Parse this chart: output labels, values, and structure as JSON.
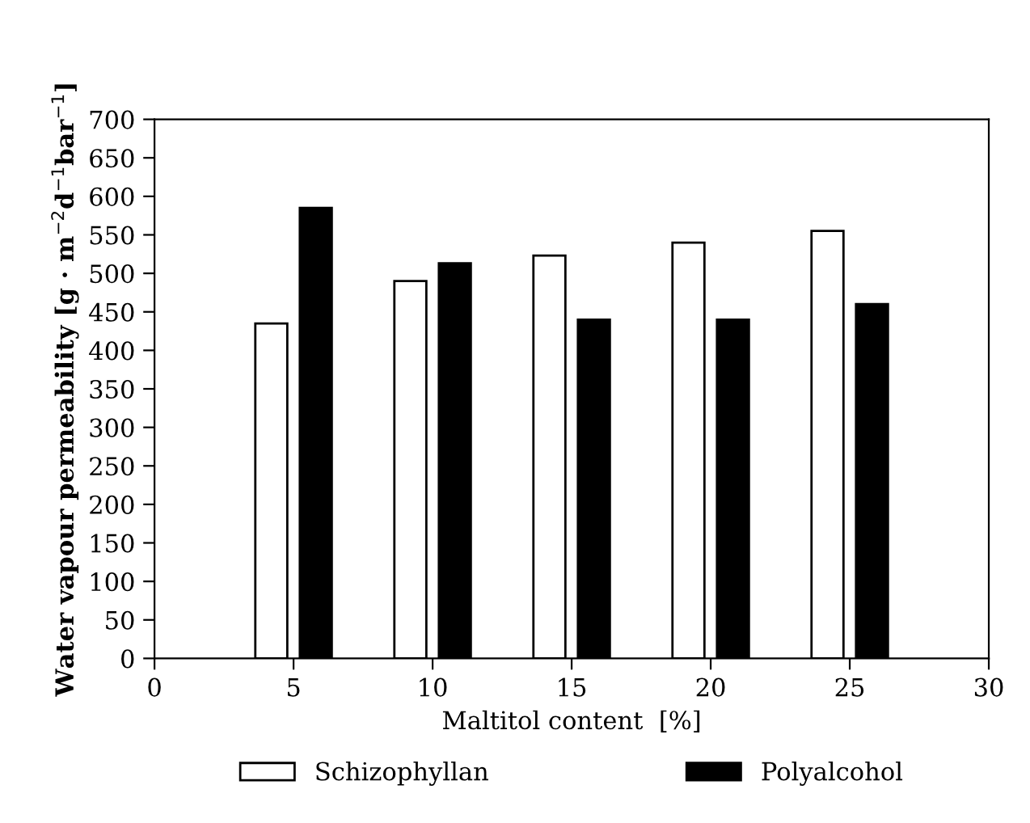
{
  "chart_data": {
    "type": "bar",
    "xlabel": "Maltitol content  [%]",
    "ylabel": "Water vapour permeability [g · m$^{−2}$d$^{−1}$bar$^{−1}$]",
    "x": [
      5,
      10,
      15,
      20,
      25
    ],
    "series": [
      {
        "name": "Schizophyllan",
        "color": "#ffffff",
        "values": [
          435,
          490,
          523,
          540,
          555
        ]
      },
      {
        "name": "Polyalcohol",
        "color": "#000000",
        "values": [
          585,
          513,
          440,
          440,
          460
        ]
      }
    ],
    "xlim": [
      0,
      30
    ],
    "xticks": [
      0,
      5,
      10,
      15,
      20,
      25,
      30
    ],
    "ylim": [
      0,
      700
    ],
    "yticks": [
      0,
      50,
      100,
      150,
      200,
      250,
      300,
      350,
      400,
      450,
      500,
      550,
      600,
      650,
      700
    ],
    "grid": false,
    "legend": "bottom"
  }
}
